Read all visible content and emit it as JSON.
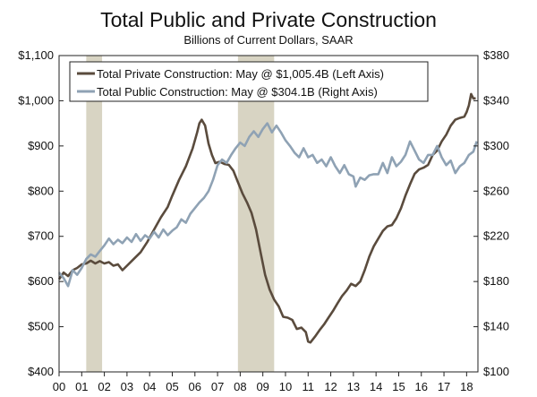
{
  "chart_data": {
    "type": "line",
    "title": "Total Public and Private Construction",
    "subtitle": "Billions of Current Dollars, SAAR",
    "x_ticks": [
      "00",
      "01",
      "02",
      "03",
      "04",
      "05",
      "06",
      "07",
      "08",
      "09",
      "10",
      "11",
      "12",
      "13",
      "14",
      "15",
      "16",
      "17",
      "18"
    ],
    "x_range": [
      2000.0,
      2018.5
    ],
    "left_axis": {
      "ticks": [
        "$400",
        "$500",
        "$600",
        "$700",
        "$800",
        "$900",
        "$1,000",
        "$1,100"
      ],
      "ylim": [
        400,
        1100
      ]
    },
    "right_axis": {
      "ticks": [
        "$100",
        "$140",
        "$180",
        "$220",
        "$260",
        "$300",
        "$340",
        "$380"
      ],
      "ylim": [
        100,
        380
      ]
    },
    "recessions": [
      [
        2001.2,
        2001.9
      ],
      [
        2007.9,
        2009.5
      ]
    ],
    "series": [
      {
        "name": "Total Private Construction: May @ $1,005.4B (Left Axis)",
        "axis": "left",
        "color": "#5a4b3d",
        "points": [
          [
            2000.0,
            605
          ],
          [
            2000.2,
            620
          ],
          [
            2000.4,
            612
          ],
          [
            2000.6,
            625
          ],
          [
            2000.8,
            630
          ],
          [
            2001.0,
            638
          ],
          [
            2001.2,
            640
          ],
          [
            2001.4,
            646
          ],
          [
            2001.6,
            640
          ],
          [
            2001.8,
            645
          ],
          [
            2002.0,
            640
          ],
          [
            2002.2,
            643
          ],
          [
            2002.4,
            635
          ],
          [
            2002.6,
            638
          ],
          [
            2002.8,
            625
          ],
          [
            2003.0,
            635
          ],
          [
            2003.3,
            650
          ],
          [
            2003.6,
            665
          ],
          [
            2003.9,
            688
          ],
          [
            2004.2,
            715
          ],
          [
            2004.5,
            742
          ],
          [
            2004.8,
            765
          ],
          [
            2005.0,
            790
          ],
          [
            2005.3,
            825
          ],
          [
            2005.6,
            855
          ],
          [
            2005.9,
            895
          ],
          [
            2006.1,
            930
          ],
          [
            2006.2,
            950
          ],
          [
            2006.3,
            958
          ],
          [
            2006.45,
            945
          ],
          [
            2006.6,
            905
          ],
          [
            2006.75,
            880
          ],
          [
            2006.9,
            862
          ],
          [
            2007.1,
            865
          ],
          [
            2007.3,
            860
          ],
          [
            2007.5,
            858
          ],
          [
            2007.7,
            845
          ],
          [
            2007.9,
            820
          ],
          [
            2008.1,
            795
          ],
          [
            2008.3,
            775
          ],
          [
            2008.5,
            752
          ],
          [
            2008.7,
            715
          ],
          [
            2008.9,
            665
          ],
          [
            2009.1,
            615
          ],
          [
            2009.3,
            582
          ],
          [
            2009.5,
            560
          ],
          [
            2009.7,
            545
          ],
          [
            2009.9,
            522
          ],
          [
            2010.1,
            520
          ],
          [
            2010.3,
            515
          ],
          [
            2010.5,
            495
          ],
          [
            2010.7,
            498
          ],
          [
            2010.9,
            488
          ],
          [
            2011.0,
            467
          ],
          [
            2011.1,
            465
          ],
          [
            2011.3,
            478
          ],
          [
            2011.5,
            492
          ],
          [
            2011.7,
            505
          ],
          [
            2011.9,
            520
          ],
          [
            2012.1,
            535
          ],
          [
            2012.3,
            552
          ],
          [
            2012.5,
            568
          ],
          [
            2012.7,
            580
          ],
          [
            2012.9,
            595
          ],
          [
            2013.1,
            590
          ],
          [
            2013.3,
            600
          ],
          [
            2013.5,
            625
          ],
          [
            2013.7,
            655
          ],
          [
            2013.9,
            678
          ],
          [
            2014.1,
            695
          ],
          [
            2014.3,
            712
          ],
          [
            2014.5,
            722
          ],
          [
            2014.7,
            725
          ],
          [
            2014.9,
            740
          ],
          [
            2015.1,
            762
          ],
          [
            2015.3,
            790
          ],
          [
            2015.5,
            815
          ],
          [
            2015.7,
            838
          ],
          [
            2015.9,
            848
          ],
          [
            2016.1,
            852
          ],
          [
            2016.3,
            858
          ],
          [
            2016.5,
            880
          ],
          [
            2016.7,
            890
          ],
          [
            2016.9,
            910
          ],
          [
            2017.1,
            925
          ],
          [
            2017.3,
            945
          ],
          [
            2017.5,
            958
          ],
          [
            2017.7,
            962
          ],
          [
            2017.9,
            965
          ],
          [
            2018.0,
            975
          ],
          [
            2018.1,
            990
          ],
          [
            2018.2,
            1015
          ],
          [
            2018.3,
            1005
          ],
          [
            2018.4,
            1005.4
          ]
        ]
      },
      {
        "name": "Total Public Construction: May @ $304.1B (Right Axis)",
        "axis": "right",
        "color": "#8fa2b4",
        "points": [
          [
            2000.0,
            188
          ],
          [
            2000.2,
            183
          ],
          [
            2000.4,
            176
          ],
          [
            2000.6,
            190
          ],
          [
            2000.8,
            186
          ],
          [
            2001.0,
            192
          ],
          [
            2001.2,
            200
          ],
          [
            2001.4,
            204
          ],
          [
            2001.6,
            202
          ],
          [
            2001.8,
            207
          ],
          [
            2002.0,
            212
          ],
          [
            2002.2,
            218
          ],
          [
            2002.4,
            213
          ],
          [
            2002.6,
            217
          ],
          [
            2002.8,
            214
          ],
          [
            2003.0,
            219
          ],
          [
            2003.2,
            215
          ],
          [
            2003.4,
            222
          ],
          [
            2003.6,
            216
          ],
          [
            2003.8,
            221
          ],
          [
            2004.0,
            218
          ],
          [
            2004.2,
            224
          ],
          [
            2004.4,
            219
          ],
          [
            2004.6,
            226
          ],
          [
            2004.8,
            221
          ],
          [
            2005.0,
            225
          ],
          [
            2005.2,
            228
          ],
          [
            2005.4,
            235
          ],
          [
            2005.6,
            232
          ],
          [
            2005.8,
            240
          ],
          [
            2006.0,
            245
          ],
          [
            2006.2,
            250
          ],
          [
            2006.4,
            254
          ],
          [
            2006.6,
            260
          ],
          [
            2006.8,
            270
          ],
          [
            2007.0,
            283
          ],
          [
            2007.2,
            288
          ],
          [
            2007.4,
            285
          ],
          [
            2007.6,
            292
          ],
          [
            2007.8,
            298
          ],
          [
            2008.0,
            303
          ],
          [
            2008.2,
            300
          ],
          [
            2008.4,
            308
          ],
          [
            2008.6,
            313
          ],
          [
            2008.8,
            308
          ],
          [
            2009.0,
            315
          ],
          [
            2009.2,
            320
          ],
          [
            2009.4,
            312
          ],
          [
            2009.6,
            318
          ],
          [
            2009.8,
            312
          ],
          [
            2010.0,
            305
          ],
          [
            2010.2,
            300
          ],
          [
            2010.4,
            294
          ],
          [
            2010.6,
            290
          ],
          [
            2010.8,
            298
          ],
          [
            2011.0,
            290
          ],
          [
            2011.2,
            292
          ],
          [
            2011.4,
            285
          ],
          [
            2011.6,
            288
          ],
          [
            2011.8,
            282
          ],
          [
            2012.0,
            290
          ],
          [
            2012.2,
            282
          ],
          [
            2012.4,
            276
          ],
          [
            2012.6,
            283
          ],
          [
            2012.8,
            275
          ],
          [
            2013.0,
            273
          ],
          [
            2013.1,
            264
          ],
          [
            2013.3,
            272
          ],
          [
            2013.5,
            270
          ],
          [
            2013.7,
            274
          ],
          [
            2013.9,
            275
          ],
          [
            2014.1,
            275
          ],
          [
            2014.3,
            285
          ],
          [
            2014.5,
            276
          ],
          [
            2014.7,
            290
          ],
          [
            2014.9,
            282
          ],
          [
            2015.1,
            286
          ],
          [
            2015.3,
            292
          ],
          [
            2015.5,
            304
          ],
          [
            2015.7,
            296
          ],
          [
            2015.9,
            288
          ],
          [
            2016.1,
            285
          ],
          [
            2016.3,
            292
          ],
          [
            2016.5,
            292
          ],
          [
            2016.7,
            300
          ],
          [
            2016.9,
            290
          ],
          [
            2017.1,
            283
          ],
          [
            2017.3,
            287
          ],
          [
            2017.5,
            276
          ],
          [
            2017.7,
            282
          ],
          [
            2017.9,
            285
          ],
          [
            2018.1,
            292
          ],
          [
            2018.3,
            295
          ],
          [
            2018.45,
            304.1
          ]
        ]
      }
    ],
    "legend_position": "top-left"
  }
}
